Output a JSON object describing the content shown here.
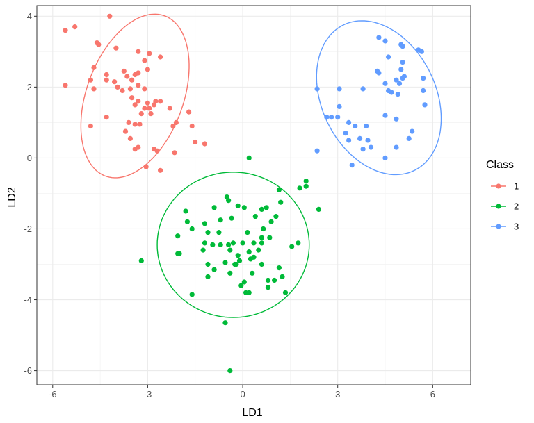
{
  "chart_data": {
    "type": "scatter",
    "title": "",
    "xlabel": "LD1",
    "ylabel": "LD2",
    "xlim": [
      -6.5,
      7.2
    ],
    "ylim": [
      -6.4,
      4.3
    ],
    "xticks": [
      -6,
      -3,
      0,
      3,
      6
    ],
    "xtick_labels": [
      "-6",
      "-3",
      "0",
      "3",
      "6"
    ],
    "yticks": [
      -6,
      -4,
      -2,
      0,
      2,
      4
    ],
    "ytick_labels": [
      "-6",
      "-4",
      "-2",
      "0",
      "2",
      "4"
    ],
    "grid": true,
    "legend": {
      "title": "Class",
      "position": "right"
    },
    "colors": {
      "1": "#F8766D",
      "2": "#00BA38",
      "3": "#619CFF"
    },
    "series": [
      {
        "name": "1",
        "ellipse": {
          "cx": -3.4,
          "cy": 1.75,
          "rx": 1.5,
          "ry": 2.45,
          "angle_deg": -25
        },
        "points": [
          [
            -4.2,
            4.0
          ],
          [
            -5.6,
            3.6
          ],
          [
            -5.3,
            3.7
          ],
          [
            -4.6,
            3.25
          ],
          [
            -4.55,
            3.2
          ],
          [
            -4.0,
            3.1
          ],
          [
            -3.3,
            3.0
          ],
          [
            -2.95,
            2.95
          ],
          [
            -3.1,
            2.75
          ],
          [
            -2.6,
            2.85
          ],
          [
            -4.7,
            2.55
          ],
          [
            -3.3,
            2.4
          ],
          [
            -3.0,
            2.5
          ],
          [
            -5.6,
            2.05
          ],
          [
            -4.8,
            2.2
          ],
          [
            -4.3,
            2.35
          ],
          [
            -4.3,
            2.2
          ],
          [
            -4.05,
            2.15
          ],
          [
            -3.75,
            2.45
          ],
          [
            -3.65,
            2.3
          ],
          [
            -3.5,
            2.2
          ],
          [
            -3.4,
            2.35
          ],
          [
            -3.8,
            1.9
          ],
          [
            -3.95,
            2.0
          ],
          [
            -3.55,
            1.95
          ],
          [
            -4.7,
            1.95
          ],
          [
            -3.3,
            2.05
          ],
          [
            -3.1,
            1.95
          ],
          [
            -3.5,
            1.7
          ],
          [
            -3.3,
            1.6
          ],
          [
            -3.0,
            1.55
          ],
          [
            -2.95,
            1.4
          ],
          [
            -2.8,
            1.5
          ],
          [
            -3.1,
            1.4
          ],
          [
            -2.75,
            1.6
          ],
          [
            -2.6,
            1.6
          ],
          [
            -3.4,
            1.5
          ],
          [
            -4.3,
            1.15
          ],
          [
            -3.2,
            1.25
          ],
          [
            -2.9,
            1.25
          ],
          [
            -3.6,
            1.0
          ],
          [
            -3.4,
            0.95
          ],
          [
            -3.25,
            0.95
          ],
          [
            -2.3,
            1.4
          ],
          [
            -2.1,
            1.0
          ],
          [
            -2.2,
            0.9
          ],
          [
            -1.7,
            1.3
          ],
          [
            -1.6,
            0.9
          ],
          [
            -4.8,
            0.9
          ],
          [
            -3.7,
            0.75
          ],
          [
            -3.55,
            0.55
          ],
          [
            -3.4,
            0.25
          ],
          [
            -3.3,
            0.3
          ],
          [
            -2.8,
            0.25
          ],
          [
            -2.7,
            0.2
          ],
          [
            -2.15,
            0.15
          ],
          [
            -1.5,
            0.45
          ],
          [
            -1.2,
            0.4
          ],
          [
            -3.05,
            -0.25
          ],
          [
            -2.6,
            -0.35
          ]
        ]
      },
      {
        "name": "2",
        "ellipse": {
          "cx": -0.3,
          "cy": -2.45,
          "rx": 2.4,
          "ry": 2.05,
          "angle_deg": 0
        },
        "points": [
          [
            0.2,
            0.0
          ],
          [
            2.0,
            -0.65
          ],
          [
            2.0,
            -0.8
          ],
          [
            1.8,
            -0.85
          ],
          [
            1.15,
            -0.9
          ],
          [
            2.4,
            -1.45
          ],
          [
            -1.8,
            -1.5
          ],
          [
            -0.9,
            -1.4
          ],
          [
            -0.5,
            -1.1
          ],
          [
            -0.45,
            -1.2
          ],
          [
            -0.15,
            -1.35
          ],
          [
            0.05,
            -1.4
          ],
          [
            1.2,
            -1.25
          ],
          [
            0.75,
            -1.4
          ],
          [
            0.6,
            -1.45
          ],
          [
            -1.75,
            -1.8
          ],
          [
            -1.6,
            -2.0
          ],
          [
            -0.35,
            -1.7
          ],
          [
            -0.7,
            -1.75
          ],
          [
            -1.2,
            -1.85
          ],
          [
            0.4,
            -1.65
          ],
          [
            1.05,
            -1.65
          ],
          [
            0.9,
            -1.8
          ],
          [
            -2.05,
            -2.2
          ],
          [
            -1.1,
            -2.1
          ],
          [
            -0.75,
            -2.1
          ],
          [
            0.15,
            -2.1
          ],
          [
            0.65,
            -2.0
          ],
          [
            0.85,
            -2.25
          ],
          [
            0.6,
            -2.25
          ],
          [
            -1.2,
            -2.4
          ],
          [
            -0.95,
            -2.45
          ],
          [
            -0.7,
            -2.45
          ],
          [
            -0.45,
            -2.45
          ],
          [
            -0.3,
            -2.4
          ],
          [
            0.0,
            -2.4
          ],
          [
            0.35,
            -2.4
          ],
          [
            0.6,
            -2.4
          ],
          [
            1.75,
            -2.4
          ],
          [
            1.55,
            -2.5
          ],
          [
            -2.05,
            -2.7
          ],
          [
            -2.0,
            -2.7
          ],
          [
            -1.25,
            -2.6
          ],
          [
            -0.4,
            -2.6
          ],
          [
            -0.15,
            -2.75
          ],
          [
            0.2,
            -2.65
          ],
          [
            0.5,
            -2.6
          ],
          [
            -0.1,
            -2.9
          ],
          [
            0.25,
            -2.85
          ],
          [
            0.35,
            -2.8
          ],
          [
            -3.2,
            -2.9
          ],
          [
            -1.1,
            -3.0
          ],
          [
            -0.55,
            -2.95
          ],
          [
            -0.2,
            -3.0
          ],
          [
            -0.25,
            -3.0
          ],
          [
            0.6,
            -3.0
          ],
          [
            -0.9,
            -3.15
          ],
          [
            -0.4,
            -3.25
          ],
          [
            0.3,
            -3.25
          ],
          [
            1.15,
            -3.1
          ],
          [
            -1.1,
            -3.35
          ],
          [
            0.8,
            -3.45
          ],
          [
            1.0,
            -3.45
          ],
          [
            1.25,
            -3.35
          ],
          [
            0.05,
            -3.5
          ],
          [
            -0.05,
            -3.6
          ],
          [
            0.8,
            -3.65
          ],
          [
            -1.6,
            -3.85
          ],
          [
            0.1,
            -3.8
          ],
          [
            0.2,
            -3.8
          ],
          [
            1.35,
            -3.8
          ],
          [
            -0.55,
            -4.65
          ],
          [
            -0.4,
            -6.0
          ]
        ]
      },
      {
        "name": "3",
        "ellipse": {
          "cx": 4.3,
          "cy": 1.7,
          "rx": 1.75,
          "ry": 2.35,
          "angle_deg": 35
        },
        "points": [
          [
            4.3,
            3.4
          ],
          [
            4.5,
            3.3
          ],
          [
            5.0,
            3.2
          ],
          [
            5.05,
            3.15
          ],
          [
            5.55,
            3.05
          ],
          [
            5.65,
            3.0
          ],
          [
            4.6,
            2.85
          ],
          [
            5.05,
            2.7
          ],
          [
            5.0,
            2.5
          ],
          [
            4.3,
            2.4
          ],
          [
            4.25,
            2.45
          ],
          [
            5.05,
            2.25
          ],
          [
            5.1,
            2.3
          ],
          [
            4.85,
            2.2
          ],
          [
            4.95,
            2.1
          ],
          [
            5.7,
            2.25
          ],
          [
            4.5,
            2.1
          ],
          [
            3.8,
            1.95
          ],
          [
            3.05,
            1.95
          ],
          [
            2.35,
            1.95
          ],
          [
            4.6,
            1.9
          ],
          [
            4.7,
            1.85
          ],
          [
            4.9,
            1.8
          ],
          [
            5.7,
            1.9
          ],
          [
            3.05,
            1.45
          ],
          [
            5.75,
            1.5
          ],
          [
            2.65,
            1.15
          ],
          [
            2.8,
            1.15
          ],
          [
            3.0,
            1.15
          ],
          [
            3.35,
            1.0
          ],
          [
            4.5,
            1.2
          ],
          [
            4.85,
            1.1
          ],
          [
            3.55,
            0.9
          ],
          [
            3.9,
            0.9
          ],
          [
            5.35,
            0.75
          ],
          [
            3.25,
            0.7
          ],
          [
            3.35,
            0.5
          ],
          [
            3.7,
            0.55
          ],
          [
            3.95,
            0.5
          ],
          [
            5.25,
            0.55
          ],
          [
            3.8,
            0.25
          ],
          [
            4.05,
            0.3
          ],
          [
            4.85,
            0.3
          ],
          [
            2.35,
            0.2
          ],
          [
            4.5,
            0.0
          ],
          [
            3.45,
            -0.2
          ]
        ]
      }
    ]
  }
}
